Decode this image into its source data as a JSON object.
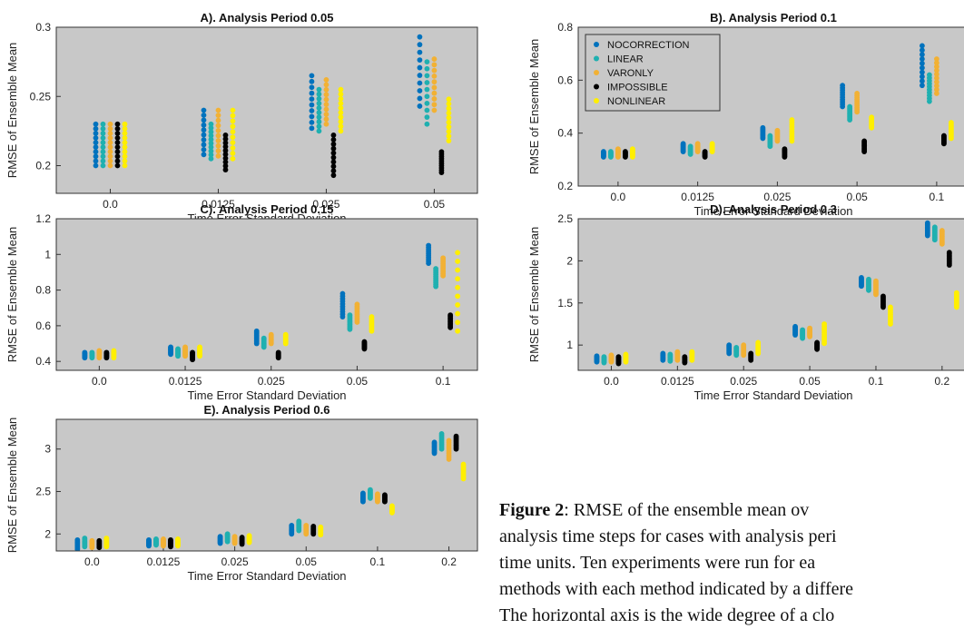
{
  "colors": {
    "plot_bg": "#c8c8c8",
    "NOCORRECTION": "#0072bd",
    "LINEAR": "#1fb0b0",
    "VARONLY": "#f2b134",
    "IMPOSSIBLE": "#000000",
    "NONLINEAR": "#ffef00"
  },
  "legend_entries": [
    "NOCORRECTION",
    "LINEAR",
    "VARONLY",
    "IMPOSSIBLE",
    "NONLINEAR"
  ],
  "caption": {
    "label": "Figure 2",
    "lines": [
      ": RMSE of the ensemble mean ov",
      "analysis time steps for cases with analysis peri",
      "time units. Ten experiments were run for ea",
      "methods with each method indicated by a differe",
      "The horizontal axis is the wide degree of a clo"
    ]
  },
  "chart_data": [
    {
      "type": "scatter",
      "title": "A). Analysis Period 0.05",
      "xlabel": "Time Error Standard Deviation",
      "ylabel": "RMSE of Ensemble Mean",
      "categories": [
        "0.0",
        "0.0125",
        "0.025",
        "0.05"
      ],
      "ylim": [
        0.18,
        0.3
      ],
      "yticks": [
        0.2,
        0.25,
        0.3
      ],
      "ytick_labels": [
        "0.2",
        "0.25",
        "0.3"
      ],
      "legend": null,
      "series": [
        {
          "name": "NOCORRECTION",
          "ranges": [
            [
              0.2,
              0.23
            ],
            [
              0.208,
              0.24
            ],
            [
              0.227,
              0.265
            ],
            [
              0.243,
              0.293
            ]
          ]
        },
        {
          "name": "LINEAR",
          "ranges": [
            [
              0.2,
              0.23
            ],
            [
              0.205,
              0.23
            ],
            [
              0.225,
              0.255
            ],
            [
              0.23,
              0.275
            ]
          ]
        },
        {
          "name": "VARONLY",
          "ranges": [
            [
              0.2,
              0.23
            ],
            [
              0.207,
              0.24
            ],
            [
              0.23,
              0.262
            ],
            [
              0.24,
              0.277
            ]
          ]
        },
        {
          "name": "IMPOSSIBLE",
          "ranges": [
            [
              0.2,
              0.23
            ],
            [
              0.197,
              0.222
            ],
            [
              0.193,
              0.222
            ],
            [
              0.195,
              0.21
            ]
          ]
        },
        {
          "name": "NONLINEAR",
          "ranges": [
            [
              0.2,
              0.23
            ],
            [
              0.205,
              0.24
            ],
            [
              0.225,
              0.255
            ],
            [
              0.218,
              0.248
            ]
          ]
        }
      ]
    },
    {
      "type": "scatter",
      "title": "B). Analysis Period 0.1",
      "xlabel": "Time Error Standard Deviation",
      "ylabel": "RMSE of Ensemble Mean",
      "categories": [
        "0.0",
        "0.0125",
        "0.025",
        "0.05",
        "0.1"
      ],
      "ylim": [
        0.2,
        0.8
      ],
      "yticks": [
        0.2,
        0.4,
        0.6,
        0.8
      ],
      "ytick_labels": [
        "0.2",
        "0.4",
        "0.6",
        "0.8"
      ],
      "legend": "top-left",
      "series": [
        {
          "name": "NOCORRECTION",
          "ranges": [
            [
              0.31,
              0.33
            ],
            [
              0.33,
              0.36
            ],
            [
              0.38,
              0.42
            ],
            [
              0.5,
              0.58
            ],
            [
              0.58,
              0.73
            ]
          ]
        },
        {
          "name": "LINEAR",
          "ranges": [
            [
              0.31,
              0.33
            ],
            [
              0.32,
              0.35
            ],
            [
              0.35,
              0.39
            ],
            [
              0.45,
              0.5
            ],
            [
              0.52,
              0.62
            ]
          ]
        },
        {
          "name": "VARONLY",
          "ranges": [
            [
              0.31,
              0.34
            ],
            [
              0.33,
              0.36
            ],
            [
              0.37,
              0.41
            ],
            [
              0.48,
              0.55
            ],
            [
              0.55,
              0.68
            ]
          ]
        },
        {
          "name": "IMPOSSIBLE",
          "ranges": [
            [
              0.31,
              0.33
            ],
            [
              0.31,
              0.33
            ],
            [
              0.31,
              0.34
            ],
            [
              0.33,
              0.37
            ],
            [
              0.36,
              0.39
            ]
          ]
        },
        {
          "name": "NONLINEAR",
          "ranges": [
            [
              0.31,
              0.34
            ],
            [
              0.33,
              0.36
            ],
            [
              0.37,
              0.45
            ],
            [
              0.42,
              0.46
            ],
            [
              0.38,
              0.44
            ]
          ]
        }
      ]
    },
    {
      "type": "scatter",
      "title": "C). Analysis Period 0.15",
      "xlabel": "Time Error Standard Deviation",
      "ylabel": "RMSE of Ensemble Mean",
      "categories": [
        "0.0",
        "0.0125",
        "0.025",
        "0.05",
        "0.1"
      ],
      "ylim": [
        0.35,
        1.2
      ],
      "yticks": [
        0.4,
        0.6,
        0.8,
        1.0,
        1.2
      ],
      "ytick_labels": [
        "0.4",
        "0.6",
        "0.8",
        "1",
        "1.2"
      ],
      "legend": null,
      "series": [
        {
          "name": "NOCORRECTION",
          "ranges": [
            [
              0.42,
              0.45
            ],
            [
              0.44,
              0.48
            ],
            [
              0.5,
              0.57
            ],
            [
              0.65,
              0.78
            ],
            [
              0.95,
              1.05
            ]
          ]
        },
        {
          "name": "LINEAR",
          "ranges": [
            [
              0.42,
              0.45
            ],
            [
              0.43,
              0.47
            ],
            [
              0.48,
              0.53
            ],
            [
              0.58,
              0.66
            ],
            [
              0.82,
              0.92
            ]
          ]
        },
        {
          "name": "VARONLY",
          "ranges": [
            [
              0.42,
              0.46
            ],
            [
              0.43,
              0.48
            ],
            [
              0.5,
              0.55
            ],
            [
              0.62,
              0.72
            ],
            [
              0.88,
              0.98
            ]
          ]
        },
        {
          "name": "IMPOSSIBLE",
          "ranges": [
            [
              0.42,
              0.45
            ],
            [
              0.41,
              0.45
            ],
            [
              0.42,
              0.45
            ],
            [
              0.47,
              0.51
            ],
            [
              0.59,
              0.66
            ]
          ]
        },
        {
          "name": "NONLINEAR",
          "ranges": [
            [
              0.42,
              0.46
            ],
            [
              0.43,
              0.48
            ],
            [
              0.5,
              0.55
            ],
            [
              0.57,
              0.65
            ],
            [
              0.57,
              1.01
            ]
          ]
        }
      ]
    },
    {
      "type": "scatter",
      "title": "D). Analysis Period 0.3",
      "xlabel": "Time Error Standard Deviation",
      "ylabel": "RMSE of Ensemble Mean",
      "categories": [
        "0.0",
        "0.0125",
        "0.025",
        "0.05",
        "0.1",
        "0.2"
      ],
      "ylim": [
        0.7,
        2.5
      ],
      "yticks": [
        1.0,
        1.5,
        2.0,
        2.5
      ],
      "ytick_labels": [
        "1",
        "1.5",
        "2",
        "2.5"
      ],
      "legend": null,
      "series": [
        {
          "name": "NOCORRECTION",
          "ranges": [
            [
              0.8,
              0.87
            ],
            [
              0.82,
              0.9
            ],
            [
              0.9,
              1.0
            ],
            [
              1.12,
              1.22
            ],
            [
              1.7,
              1.8
            ],
            [
              2.3,
              2.45
            ]
          ]
        },
        {
          "name": "LINEAR",
          "ranges": [
            [
              0.79,
              0.86
            ],
            [
              0.81,
              0.89
            ],
            [
              0.88,
              0.97
            ],
            [
              1.08,
              1.18
            ],
            [
              1.65,
              1.78
            ],
            [
              2.25,
              2.4
            ]
          ]
        },
        {
          "name": "VARONLY",
          "ranges": [
            [
              0.8,
              0.88
            ],
            [
              0.82,
              0.92
            ],
            [
              0.88,
              1.0
            ],
            [
              1.1,
              1.2
            ],
            [
              1.6,
              1.76
            ],
            [
              2.2,
              2.36
            ]
          ]
        },
        {
          "name": "IMPOSSIBLE",
          "ranges": [
            [
              0.78,
              0.86
            ],
            [
              0.79,
              0.86
            ],
            [
              0.82,
              0.9
            ],
            [
              0.95,
              1.03
            ],
            [
              1.45,
              1.58
            ],
            [
              1.95,
              2.1
            ]
          ]
        },
        {
          "name": "NONLINEAR",
          "ranges": [
            [
              0.8,
              0.89
            ],
            [
              0.82,
              0.92
            ],
            [
              0.9,
              1.03
            ],
            [
              1.02,
              1.25
            ],
            [
              1.25,
              1.45
            ],
            [
              1.45,
              1.62
            ]
          ]
        }
      ]
    },
    {
      "type": "scatter",
      "title": "E). Analysis Period 0.6",
      "xlabel": "Time Error Standard Deviation",
      "ylabel": "RMSE of Ensemble Mean",
      "categories": [
        "0.0",
        "0.0125",
        "0.025",
        "0.05",
        "0.1",
        "0.2"
      ],
      "ylim": [
        1.8,
        3.35
      ],
      "yticks": [
        2.0,
        2.5,
        3.0
      ],
      "ytick_labels": [
        "2",
        "2.5",
        "3"
      ],
      "legend": null,
      "series": [
        {
          "name": "NOCORRECTION",
          "ranges": [
            [
              1.82,
              1.93
            ],
            [
              1.86,
              1.93
            ],
            [
              1.89,
              1.97
            ],
            [
              2.0,
              2.1
            ],
            [
              2.38,
              2.48
            ],
            [
              2.95,
              3.08
            ]
          ]
        },
        {
          "name": "LINEAR",
          "ranges": [
            [
              1.85,
              1.95
            ],
            [
              1.87,
              1.94
            ],
            [
              1.91,
              2.0
            ],
            [
              2.04,
              2.15
            ],
            [
              2.42,
              2.52
            ],
            [
              3.0,
              3.18
            ]
          ]
        },
        {
          "name": "VARONLY",
          "ranges": [
            [
              1.84,
              1.92
            ],
            [
              1.86,
              1.94
            ],
            [
              1.89,
              1.97
            ],
            [
              2.0,
              2.1
            ],
            [
              2.38,
              2.47
            ],
            [
              2.88,
              3.1
            ]
          ]
        },
        {
          "name": "IMPOSSIBLE",
          "ranges": [
            [
              1.84,
              1.92
            ],
            [
              1.85,
              1.93
            ],
            [
              1.88,
              1.96
            ],
            [
              2.0,
              2.09
            ],
            [
              2.38,
              2.46
            ],
            [
              3.0,
              3.15
            ]
          ]
        },
        {
          "name": "NONLINEAR",
          "ranges": [
            [
              1.85,
              1.95
            ],
            [
              1.86,
              1.94
            ],
            [
              1.9,
              1.98
            ],
            [
              1.99,
              2.08
            ],
            [
              2.25,
              2.33
            ],
            [
              2.65,
              2.82
            ]
          ]
        }
      ]
    }
  ]
}
